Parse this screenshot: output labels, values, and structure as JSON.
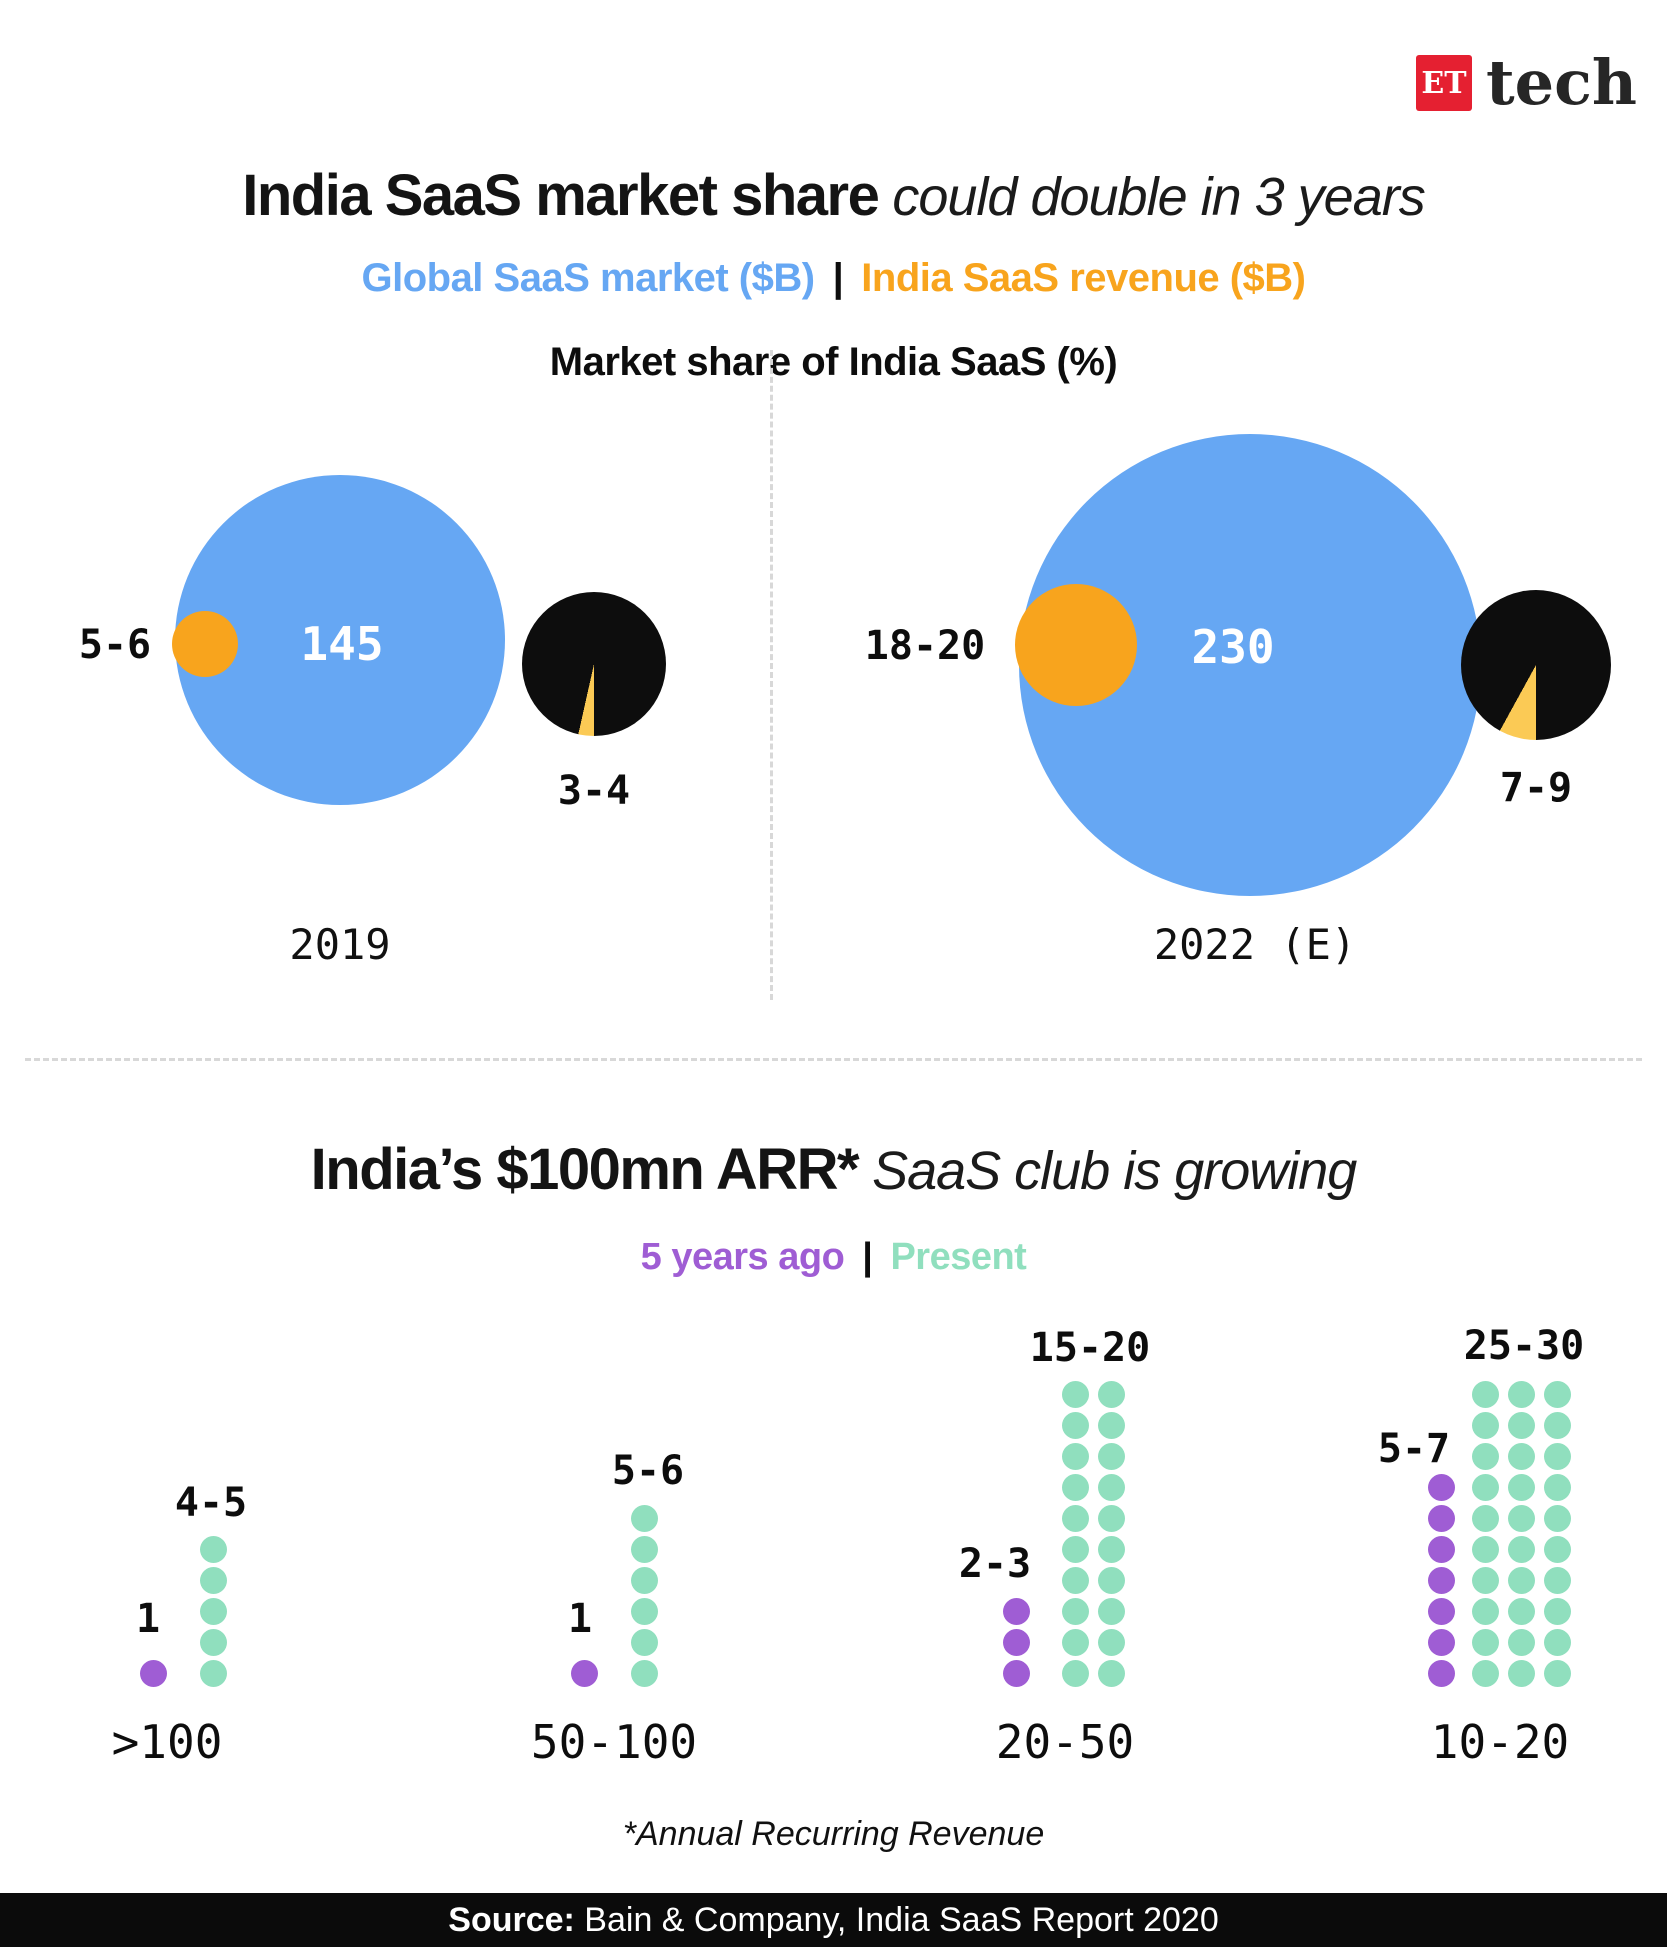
{
  "colors": {
    "blue": "#66A7F3",
    "orange": "#F8A41D",
    "slice_yellow": "#FBCA55",
    "pie_black": "#0D0D0D",
    "purple": "#9F5DD4",
    "green": "#90DFBE",
    "logo_red": "#E52031"
  },
  "logo": {
    "et": "ET",
    "tech": "tech"
  },
  "section1": {
    "title_bold": "India SaaS market share",
    "title_italic": " could double in 3 years",
    "legend": {
      "global_label": "Global SaaS market ($B)",
      "divider": "|",
      "india_label": "India SaaS revenue ($B)"
    },
    "subtitle": "Market share of India SaaS (%)",
    "charts": [
      {
        "year": "2019",
        "global_market": "145",
        "india_revenue": "5-6",
        "market_share": "3-4",
        "share_pct": 3.5
      },
      {
        "year": "2022 (E)",
        "global_market": "230",
        "india_revenue": "18-20",
        "market_share": "7-9",
        "share_pct": 8
      }
    ]
  },
  "section2": {
    "title_bold": "India’s $100mn ARR*",
    "title_italic": " SaaS club is growing",
    "legend": {
      "past_label": "5 years ago",
      "divider": "|",
      "present_label": "Present"
    },
    "columns": [
      {
        "category": ">100",
        "past_label": "1",
        "past_count": 1,
        "present_label": "4-5",
        "present_count": 5
      },
      {
        "category": "50-100",
        "past_label": "1",
        "past_count": 1,
        "present_label": "5-6",
        "present_count": 6
      },
      {
        "category": "20-50",
        "past_label": "2-3",
        "past_count": 3,
        "present_label": "15-20",
        "present_count": 20
      },
      {
        "category": "10-20",
        "past_label": "5-7",
        "past_count": 7,
        "present_label": "25-30",
        "present_count": 30
      }
    ],
    "footnote": "*Annual Recurring Revenue"
  },
  "footer": {
    "source_label": "Source:",
    "source_text": " Bain & Company, India SaaS Report 2020"
  },
  "chart_data": [
    {
      "type": "pie",
      "title": "India SaaS market share could double in 3 years",
      "subtitle": "Market share of India SaaS (%)",
      "legend": [
        "Global SaaS market ($B)",
        "India SaaS revenue ($B)"
      ],
      "legend_position": "top",
      "categories": [
        "2019",
        "2022 (E)"
      ],
      "series": [
        {
          "name": "Global SaaS market ($B)",
          "values": [
            145,
            230
          ],
          "labels": [
            "145",
            "230"
          ]
        },
        {
          "name": "India SaaS revenue ($B)",
          "values": [
            5.5,
            19
          ],
          "labels": [
            "5-6",
            "18-20"
          ]
        },
        {
          "name": "Market share of India SaaS (%)",
          "values": [
            3.5,
            8
          ],
          "labels": [
            "3-4",
            "7-9"
          ]
        }
      ]
    },
    {
      "type": "bar",
      "style": "dot-matrix",
      "title": "India’s $100mn ARR* SaaS club is growing",
      "categories": [
        ">100",
        "50-100",
        "20-50",
        "10-20"
      ],
      "series": [
        {
          "name": "5 years ago",
          "values": [
            1,
            1,
            3,
            7
          ],
          "labels": [
            "1",
            "1",
            "2-3",
            "5-7"
          ]
        },
        {
          "name": "Present",
          "values": [
            5,
            6,
            20,
            30
          ],
          "labels": [
            "4-5",
            "5-6",
            "15-20",
            "25-30"
          ]
        }
      ],
      "footnote": "*Annual Recurring Revenue",
      "legend_position": "top"
    }
  ]
}
